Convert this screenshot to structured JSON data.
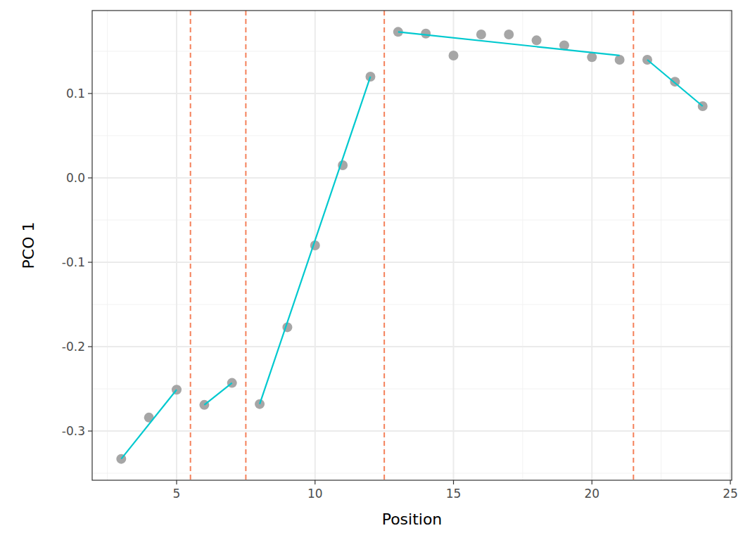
{
  "chart_data": {
    "type": "scatter",
    "x_label": "Position",
    "y_label": "PCO 1",
    "grid": true,
    "xlim": [
      1.95,
      25.05
    ],
    "ylim": [
      -0.3583,
      0.1983
    ],
    "xticks": [
      5,
      10,
      15,
      20,
      25
    ],
    "yticks": [
      -0.3,
      -0.2,
      -0.1,
      {
        "value": 0,
        "label": "0.0"
      },
      0.1
    ],
    "vlines": [
      5.5,
      7.5,
      12.5,
      21.5
    ],
    "series": [
      {
        "type": "scatter",
        "marker": "circle",
        "color": "#a6a6a6",
        "x": [
          3,
          4,
          5,
          6,
          7,
          8,
          9,
          10,
          11,
          12,
          13,
          14,
          15,
          16,
          17,
          18,
          19,
          20,
          21,
          22,
          23,
          24
        ],
        "values": [
          -0.333,
          -0.284,
          -0.251,
          -0.269,
          -0.243,
          -0.268,
          -0.177,
          -0.08,
          0.015,
          0.12,
          0.173,
          0.171,
          0.145,
          0.17,
          0.17,
          0.163,
          0.157,
          0.143,
          0.14,
          0.14,
          0.114,
          0.085
        ]
      },
      {
        "type": "line",
        "line_style": "solid",
        "color": "#00c9cf",
        "x": [
          3,
          5,
          5.5,
          6,
          7,
          7.5,
          8,
          12,
          12.5,
          13,
          21,
          21.5,
          22,
          24
        ],
        "values": [
          -0.333,
          -0.251,
          null,
          -0.269,
          -0.243,
          null,
          -0.268,
          0.12,
          null,
          0.173,
          0.145,
          null,
          0.14,
          0.085
        ]
      }
    ]
  }
}
